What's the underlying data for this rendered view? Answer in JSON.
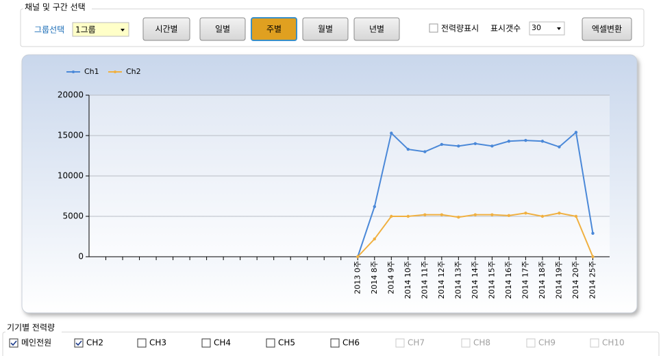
{
  "controls": {
    "group_title": "채널 및 구간 선택",
    "group_label": "그룹선택",
    "group_value": "1그룹",
    "buttons": [
      {
        "label": "시간별",
        "active": false
      },
      {
        "label": "일별",
        "active": false
      },
      {
        "label": "주별",
        "active": true
      },
      {
        "label": "월별",
        "active": false
      },
      {
        "label": "년별",
        "active": false
      }
    ],
    "power_checkbox": {
      "label": "전력량표시",
      "checked": false
    },
    "count_label": "표시갯수",
    "count_value": "30",
    "excel_button": "엑셀변환"
  },
  "chart_data": {
    "type": "line",
    "categories": [
      null,
      null,
      null,
      null,
      null,
      null,
      null,
      null,
      null,
      null,
      null,
      null,
      null,
      null,
      null,
      "2013 0주",
      "2014 8주",
      "2014 9주",
      "2014 10주",
      "2014 11주",
      "2014 12주",
      "2014 13주",
      "2014 14주",
      "2014 15주",
      "2014 16주",
      "2014 17주",
      "2014 18주",
      "2014 19주",
      "2014 20주",
      "2014 25주"
    ],
    "series": [
      {
        "name": "Ch1",
        "color": "#4a88d8",
        "values": [
          null,
          null,
          null,
          null,
          null,
          null,
          null,
          null,
          null,
          null,
          null,
          null,
          null,
          null,
          null,
          0,
          6200,
          15300,
          13300,
          13000,
          13900,
          13700,
          14000,
          13700,
          14300,
          14400,
          14300,
          13600,
          15400,
          2900
        ]
      },
      {
        "name": "Ch2",
        "color": "#f0b040",
        "values": [
          null,
          null,
          null,
          null,
          null,
          null,
          null,
          null,
          null,
          null,
          null,
          null,
          null,
          null,
          null,
          0,
          2200,
          5000,
          5000,
          5200,
          5200,
          4900,
          5200,
          5200,
          5100,
          5400,
          5000,
          5400,
          5000,
          0
        ]
      }
    ],
    "ylim": [
      0,
      20000
    ],
    "yticks": [
      0,
      5000,
      10000,
      15000,
      20000
    ],
    "grid": true,
    "legend": "top-left"
  },
  "devices": {
    "title": "기기별 전력량",
    "items": [
      {
        "label": "메인전원",
        "checked": true,
        "enabled": true
      },
      {
        "label": "CH2",
        "checked": true,
        "enabled": true
      },
      {
        "label": "CH3",
        "checked": false,
        "enabled": true
      },
      {
        "label": "CH4",
        "checked": false,
        "enabled": true
      },
      {
        "label": "CH5",
        "checked": false,
        "enabled": true
      },
      {
        "label": "CH6",
        "checked": false,
        "enabled": true
      },
      {
        "label": "CH7",
        "checked": false,
        "enabled": false
      },
      {
        "label": "CH8",
        "checked": false,
        "enabled": false
      },
      {
        "label": "CH9",
        "checked": false,
        "enabled": false
      },
      {
        "label": "CH10",
        "checked": false,
        "enabled": false
      }
    ]
  }
}
